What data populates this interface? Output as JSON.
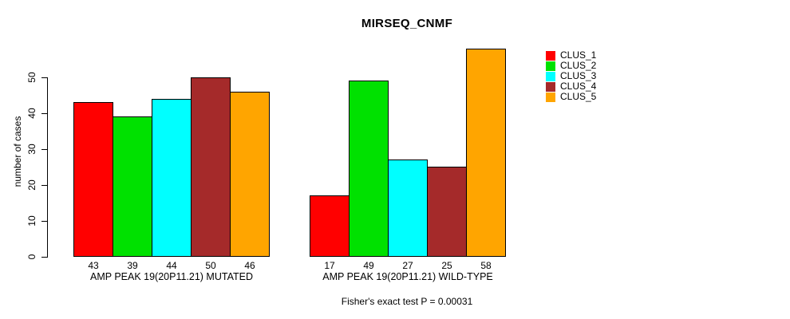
{
  "chart_data": {
    "type": "bar",
    "title": "MIRSEQ_CNMF",
    "ylabel": "number of cases",
    "xlabel": "",
    "ylim": [
      0,
      58
    ],
    "yticks": [
      0,
      10,
      20,
      30,
      40,
      50
    ],
    "grid": false,
    "legend_position": "right",
    "series": [
      {
        "name": "CLUS_1",
        "color": "#FF0000"
      },
      {
        "name": "CLUS_2",
        "color": "#00E100"
      },
      {
        "name": "CLUS_3",
        "color": "#00FFFF"
      },
      {
        "name": "CLUS_4",
        "color": "#A52A2A"
      },
      {
        "name": "CLUS_5",
        "color": "#FFA500"
      }
    ],
    "groups": [
      {
        "label": "AMP PEAK 19(20P11.21) MUTATED",
        "values": [
          43,
          39,
          44,
          50,
          46
        ]
      },
      {
        "label": "AMP PEAK 19(20P11.21) WILD-TYPE",
        "values": [
          17,
          49,
          27,
          25,
          58
        ]
      }
    ],
    "annotation": "Fisher's exact test P = 0.00031"
  }
}
